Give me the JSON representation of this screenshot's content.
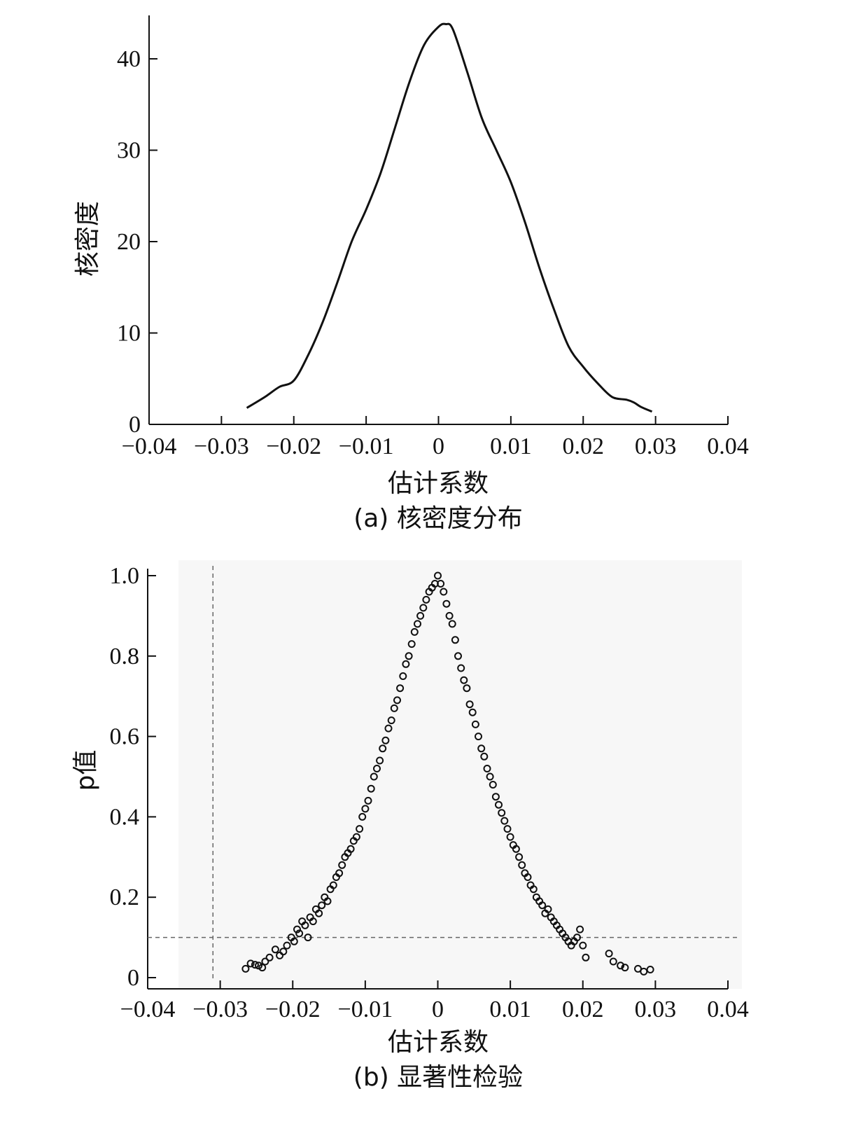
{
  "chart_data": [
    {
      "type": "line",
      "panel": "a",
      "caption": "(a) 核密度分布",
      "xlabel": "估计系数",
      "ylabel": "核密度",
      "xlim": [
        -0.04,
        0.04
      ],
      "ylim": [
        0,
        45
      ],
      "xticks": [
        -0.04,
        -0.03,
        -0.02,
        -0.01,
        0,
        0.01,
        0.02,
        0.03,
        0.04
      ],
      "xtick_labels": [
        "−0.04",
        "−0.03",
        "−0.02",
        "−0.01",
        "0",
        "0.01",
        "0.02",
        "0.03",
        "0.04"
      ],
      "yticks": [
        0,
        10,
        20,
        30,
        40
      ],
      "ytick_labels": [
        "0",
        "10",
        "20",
        "30",
        "40"
      ],
      "grid": false,
      "series": [
        {
          "x": [
            -0.0265,
            -0.024,
            -0.022,
            -0.02,
            -0.018,
            -0.016,
            -0.014,
            -0.012,
            -0.01,
            -0.008,
            -0.006,
            -0.004,
            -0.002,
            0.0,
            0.001,
            0.002,
            0.004,
            0.006,
            0.008,
            0.01,
            0.012,
            0.014,
            0.016,
            0.018,
            0.02,
            0.022,
            0.024,
            0.026,
            0.027,
            0.028,
            0.0295
          ],
          "y": [
            1.8,
            3.0,
            4.1,
            4.8,
            7.6,
            11.2,
            15.5,
            20.0,
            23.5,
            27.5,
            32.5,
            37.5,
            41.5,
            43.5,
            43.8,
            43.2,
            38.5,
            33.5,
            30.0,
            26.5,
            22.0,
            17.0,
            12.5,
            8.5,
            6.3,
            4.5,
            3.0,
            2.7,
            2.4,
            1.9,
            1.4
          ]
        }
      ]
    },
    {
      "type": "scatter",
      "panel": "b",
      "caption": "(b) 显著性检验",
      "xlabel": "估计系数",
      "ylabel": "p值",
      "xlim": [
        -0.04,
        0.04
      ],
      "ylim": [
        0,
        1.0
      ],
      "xticks": [
        -0.04,
        -0.03,
        -0.02,
        -0.01,
        0,
        0.01,
        0.02,
        0.03,
        0.04
      ],
      "xtick_labels": [
        "−0.04",
        "−0.03",
        "−0.02",
        "−0.01",
        "0",
        "0.01",
        "0.02",
        "0.03",
        "0.04"
      ],
      "yticks": [
        0,
        0.2,
        0.4,
        0.6,
        0.8,
        1.0
      ],
      "ytick_labels": [
        "0",
        "0.2",
        "0.4",
        "0.6",
        "0.8",
        "1.0"
      ],
      "grid": false,
      "reference_lines": {
        "hline_y": 0.1,
        "vline_x": -0.031
      },
      "points": {
        "x": [
          -0.0265,
          -0.0258,
          -0.0252,
          -0.0247,
          -0.0242,
          -0.0238,
          -0.0232,
          -0.0224,
          -0.0218,
          -0.0213,
          -0.0208,
          -0.0202,
          -0.0198,
          -0.0194,
          -0.0191,
          -0.0187,
          -0.0183,
          -0.0179,
          -0.0176,
          -0.0172,
          -0.0168,
          -0.0164,
          -0.016,
          -0.0156,
          -0.0152,
          -0.0148,
          -0.0144,
          -0.014,
          -0.0136,
          -0.0132,
          -0.0128,
          -0.0124,
          -0.012,
          -0.0116,
          -0.0112,
          -0.0108,
          -0.0104,
          -0.01,
          -0.0096,
          -0.0092,
          -0.0088,
          -0.0084,
          -0.008,
          -0.0076,
          -0.0072,
          -0.0068,
          -0.0064,
          -0.006,
          -0.0056,
          -0.0052,
          -0.0048,
          -0.0044,
          -0.004,
          -0.0036,
          -0.0032,
          -0.0028,
          -0.0024,
          -0.002,
          -0.0016,
          -0.0012,
          -0.0008,
          -0.0004,
          0.0,
          0.0004,
          0.0008,
          0.0012,
          0.0016,
          0.002,
          0.0024,
          0.0028,
          0.0032,
          0.0036,
          0.004,
          0.0044,
          0.0048,
          0.0052,
          0.0056,
          0.006,
          0.0064,
          0.0068,
          0.0072,
          0.0076,
          0.008,
          0.0084,
          0.0088,
          0.0092,
          0.0096,
          0.01,
          0.0104,
          0.0108,
          0.0112,
          0.0116,
          0.012,
          0.0124,
          0.0128,
          0.0132,
          0.0136,
          0.014,
          0.0144,
          0.0148,
          0.0152,
          0.0156,
          0.016,
          0.0164,
          0.0168,
          0.0172,
          0.0176,
          0.018,
          0.0184,
          0.0188,
          0.0192,
          0.0196,
          0.02,
          0.0204,
          0.0236,
          0.0242,
          0.0252,
          0.0258,
          0.0276,
          0.0284,
          0.0293
        ],
        "y": [
          0.022,
          0.035,
          0.032,
          0.03,
          0.025,
          0.04,
          0.05,
          0.07,
          0.055,
          0.065,
          0.08,
          0.1,
          0.09,
          0.12,
          0.11,
          0.14,
          0.13,
          0.1,
          0.15,
          0.14,
          0.17,
          0.16,
          0.18,
          0.2,
          0.19,
          0.22,
          0.23,
          0.25,
          0.26,
          0.28,
          0.3,
          0.31,
          0.32,
          0.34,
          0.35,
          0.37,
          0.4,
          0.42,
          0.44,
          0.47,
          0.5,
          0.52,
          0.54,
          0.57,
          0.59,
          0.62,
          0.64,
          0.67,
          0.69,
          0.72,
          0.75,
          0.78,
          0.8,
          0.83,
          0.86,
          0.88,
          0.9,
          0.92,
          0.94,
          0.96,
          0.97,
          0.98,
          1.0,
          0.98,
          0.96,
          0.93,
          0.9,
          0.88,
          0.84,
          0.8,
          0.77,
          0.74,
          0.72,
          0.68,
          0.66,
          0.63,
          0.6,
          0.57,
          0.55,
          0.52,
          0.5,
          0.48,
          0.45,
          0.43,
          0.41,
          0.39,
          0.37,
          0.35,
          0.33,
          0.32,
          0.3,
          0.28,
          0.26,
          0.25,
          0.23,
          0.22,
          0.2,
          0.19,
          0.18,
          0.16,
          0.17,
          0.15,
          0.14,
          0.13,
          0.12,
          0.11,
          0.1,
          0.09,
          0.08,
          0.09,
          0.1,
          0.12,
          0.08,
          0.05,
          0.06,
          0.04,
          0.03,
          0.025,
          0.022,
          0.015,
          0.02
        ]
      }
    }
  ]
}
